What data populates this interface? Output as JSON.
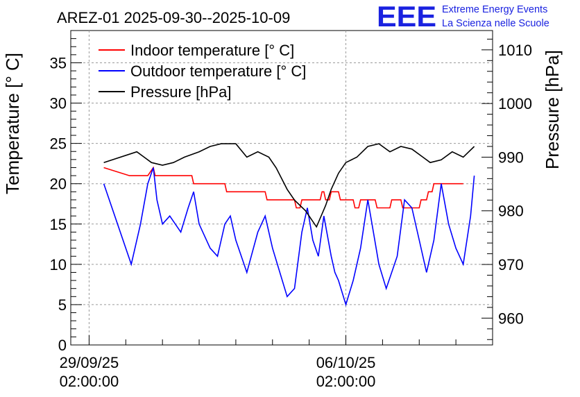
{
  "chart_data": {
    "type": "line",
    "title": "AREZ-01 2025-09-30--2025-10-09",
    "xlabel": "",
    "ylabel_left": "Temperature [° C]",
    "ylabel_right": "Pressure [hPa]",
    "xlim_days": [
      -0.5,
      11.0
    ],
    "ylim_left": [
      0,
      39
    ],
    "ylim_right": [
      955,
      1013.6
    ],
    "grid": true,
    "legend_position": "top-left",
    "x_ticks": [
      {
        "day": 0,
        "line1": "29/09/25",
        "line2": "02:00:00"
      },
      {
        "day": 7,
        "line1": "06/10/25",
        "line2": "02:00:00"
      }
    ],
    "left_ticks": [
      0,
      5,
      10,
      15,
      20,
      25,
      30,
      35
    ],
    "right_ticks": [
      960,
      970,
      980,
      990,
      1000,
      1010
    ],
    "series": [
      {
        "name": "Indoor temperature [° C]",
        "axis": "left",
        "color": "#ff0000",
        "x": [
          0.4,
          1.1,
          1.6,
          1.75,
          1.8,
          2.8,
          2.85,
          3.7,
          3.75,
          4.8,
          4.85,
          5.6,
          5.65,
          5.75,
          5.8,
          6.3,
          6.35,
          6.4,
          6.45,
          6.55,
          6.6,
          6.8,
          6.85,
          7.2,
          7.25,
          7.35,
          7.4,
          7.8,
          7.85,
          8.2,
          8.25,
          8.5,
          8.55,
          9.0,
          9.05,
          9.2,
          9.25,
          9.35,
          9.4,
          10.0,
          10.2
        ],
        "y": [
          22,
          21,
          21,
          22,
          21,
          21,
          20,
          20,
          19,
          19,
          18,
          18,
          17,
          17,
          18,
          18,
          19,
          19,
          18,
          18,
          19,
          19,
          18,
          18,
          17,
          17,
          18,
          18,
          17,
          17,
          18,
          18,
          17,
          17,
          18,
          18,
          19,
          19,
          20,
          20,
          20
        ]
      },
      {
        "name": "Outdoor temperature [° C]",
        "axis": "left",
        "color": "#0000ff",
        "x": [
          0.4,
          1.15,
          1.4,
          1.6,
          1.75,
          1.85,
          2.0,
          2.2,
          2.5,
          2.7,
          2.85,
          3.0,
          3.3,
          3.5,
          3.6,
          3.7,
          3.85,
          4.0,
          4.3,
          4.6,
          4.8,
          5.0,
          5.4,
          5.6,
          5.8,
          5.95,
          6.1,
          6.25,
          6.4,
          6.6,
          6.7,
          6.8,
          7.0,
          7.2,
          7.4,
          7.6,
          7.75,
          7.9,
          8.1,
          8.4,
          8.6,
          8.8,
          9.0,
          9.2,
          9.4,
          9.6,
          9.8,
          10.0,
          10.2,
          10.4,
          10.5
        ],
        "y": [
          20,
          10,
          15,
          20,
          22,
          18,
          15,
          16,
          14,
          17,
          19,
          15,
          12,
          11,
          13,
          15,
          16,
          13,
          9,
          14,
          16,
          12,
          6,
          7,
          14,
          17,
          13,
          11,
          16,
          11,
          9,
          8,
          5,
          8,
          12,
          18,
          14,
          10,
          7,
          11,
          18,
          17,
          13,
          9,
          13,
          20,
          15,
          12,
          10,
          16,
          21
        ]
      },
      {
        "name": "Pressure [hPa]",
        "axis": "right",
        "color": "#000000",
        "x": [
          0.4,
          1.3,
          1.5,
          1.7,
          2.0,
          2.3,
          2.6,
          3.0,
          3.3,
          3.6,
          4.0,
          4.3,
          4.6,
          4.9,
          5.1,
          5.4,
          5.6,
          5.9,
          6.2,
          6.45,
          6.6,
          6.8,
          7.0,
          7.3,
          7.6,
          7.9,
          8.2,
          8.5,
          8.8,
          9.1,
          9.3,
          9.6,
          9.9,
          10.2,
          10.5
        ],
        "y": [
          989,
          991,
          990,
          989,
          988.5,
          989,
          990,
          991,
          992,
          992.5,
          992.5,
          990,
          991,
          990,
          988,
          984,
          982,
          980,
          977,
          981,
          984,
          987,
          989,
          990,
          992,
          992.5,
          991,
          992,
          991.5,
          990,
          989,
          989.5,
          991,
          990,
          992
        ]
      }
    ],
    "logo": {
      "mark": "EEE",
      "line1": "Extreme Energy Events",
      "line2": "La Scienza nelle Scuole"
    }
  }
}
